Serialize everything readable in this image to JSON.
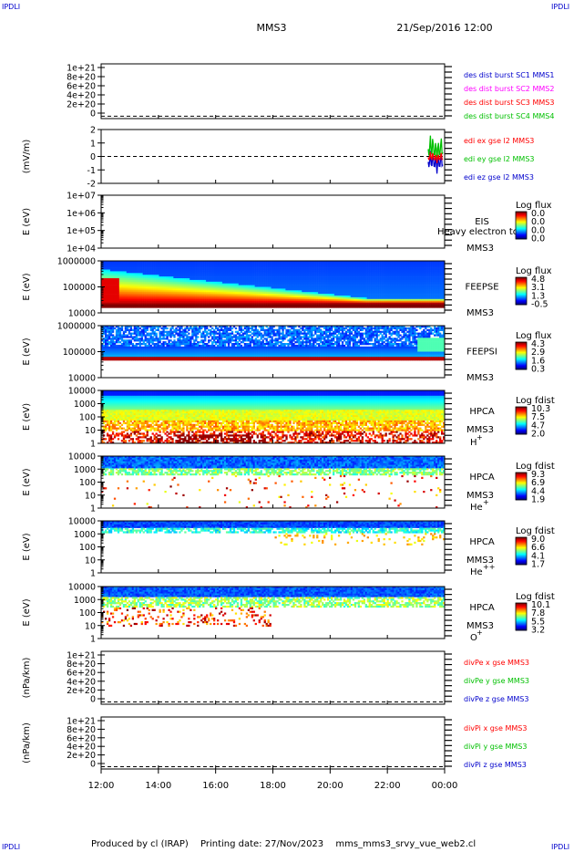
{
  "corners": {
    "tl": "IPDLI",
    "tr": "IPDLI",
    "bl": "IPDLI",
    "br": "IPDLI"
  },
  "header": {
    "spacecraft": "MMS3",
    "datetime": "21/Sep/2016 12:00"
  },
  "footer": {
    "produced": "Produced by cl (IRAP)",
    "printing": "Printing date: 27/Nov/2023",
    "file": "mms_mms3_srvy_vue_web2.cl"
  },
  "colors": {
    "red": "#ff0000",
    "green": "#00c000",
    "blue": "#0000cc",
    "magenta": "#ff00ff",
    "axis": "#000000"
  },
  "chart_data": [
    {
      "type": "line",
      "panel": 1,
      "ylabel": "",
      "ylim": [
        -5e+19,
        1.1e+21
      ],
      "yticks": [
        "0",
        "2e+20",
        "4e+20",
        "6e+20",
        "8e+20",
        "1e+21"
      ],
      "zero_line": true,
      "series": [
        {
          "name": "des dist burst SC1 MMS1",
          "color": "#0000cc"
        },
        {
          "name": "des dist burst SC2 MMS2",
          "color": "#ff00ff"
        },
        {
          "name": "des dist burst SC3 MMS3",
          "color": "#ff0000"
        },
        {
          "name": "des dist burst SC4 MMS4",
          "color": "#00c000"
        }
      ]
    },
    {
      "type": "line",
      "panel": 2,
      "ylabel": "(mV/m)",
      "ylim": [
        -2,
        2
      ],
      "yticks": [
        "-2",
        "-1",
        "0",
        "1",
        "2"
      ],
      "zero_line": true,
      "series": [
        {
          "name": "edi ex gse l2 MMS3",
          "color": "#ff0000"
        },
        {
          "name": "edi ey gse l2 MMS3",
          "color": "#00c000"
        },
        {
          "name": "edi ez gse l2 MMS3",
          "color": "#0000cc"
        }
      ]
    },
    {
      "type": "heatmap",
      "panel": 3,
      "log": true,
      "ylabel": "E (eV)",
      "ylim": [
        10000,
        10000000
      ],
      "yticks": [
        "1e+04",
        "1e+05",
        "1e+06",
        "1e+07"
      ],
      "instrument": "EIS",
      "subtitle": "Heavy electron to",
      "spacecraft": "MMS3",
      "colorbar": {
        "label": "Log flux",
        "ticks": [
          "0.0",
          "0.0",
          "0.0",
          "0.0"
        ]
      }
    },
    {
      "type": "heatmap",
      "panel": 4,
      "log": true,
      "ylabel": "E (eV)",
      "ylim": [
        10000,
        1000000
      ],
      "yticks": [
        "10000",
        "100000",
        "1000000"
      ],
      "instrument": "FEEPSE",
      "spacecraft": "MMS3",
      "colorbar": {
        "label": "Log flux",
        "ticks": [
          "4.8",
          "3.1",
          "1.3",
          "-0.5"
        ]
      }
    },
    {
      "type": "heatmap",
      "panel": 5,
      "log": true,
      "ylabel": "E (eV)",
      "ylim": [
        10000,
        1000000
      ],
      "yticks": [
        "10000",
        "100000",
        "1000000"
      ],
      "instrument": "FEEPSI",
      "spacecraft": "MMS3",
      "colorbar": {
        "label": "Log flux",
        "ticks": [
          "4.3",
          "2.9",
          "1.6",
          "0.3"
        ]
      }
    },
    {
      "type": "heatmap",
      "panel": 6,
      "log": true,
      "ylabel": "E (eV)",
      "ylim": [
        1,
        10000
      ],
      "yticks": [
        "1",
        "10",
        "100",
        "1000",
        "10000"
      ],
      "instrument": "HPCA",
      "spacecraft": "MMS3",
      "species": "H",
      "charge": "+",
      "colorbar": {
        "label": "Log fdist",
        "ticks": [
          "10.3",
          "7.5",
          "4.7",
          "2.0"
        ]
      }
    },
    {
      "type": "heatmap",
      "panel": 7,
      "log": true,
      "ylabel": "E (eV)",
      "ylim": [
        1,
        10000
      ],
      "yticks": [
        "1",
        "10",
        "100",
        "1000",
        "10000"
      ],
      "instrument": "HPCA",
      "spacecraft": "MMS3",
      "species": "He",
      "charge": "+",
      "colorbar": {
        "label": "Log fdist",
        "ticks": [
          "9.3",
          "6.9",
          "4.4",
          "1.9"
        ]
      }
    },
    {
      "type": "heatmap",
      "panel": 8,
      "log": true,
      "ylabel": "E (eV)",
      "ylim": [
        1,
        10000
      ],
      "yticks": [
        "1",
        "10",
        "100",
        "1000",
        "10000"
      ],
      "instrument": "HPCA",
      "spacecraft": "MMS3",
      "species": "He",
      "charge": "++",
      "colorbar": {
        "label": "Log fdist",
        "ticks": [
          "9.0",
          "6.6",
          "4.1",
          "1.7"
        ]
      }
    },
    {
      "type": "heatmap",
      "panel": 9,
      "log": true,
      "ylabel": "E (eV)",
      "ylim": [
        1,
        10000
      ],
      "yticks": [
        "1",
        "10",
        "100",
        "1000",
        "10000"
      ],
      "instrument": "HPCA",
      "spacecraft": "MMS3",
      "species": "O",
      "charge": "+",
      "colorbar": {
        "label": "Log fdist",
        "ticks": [
          "10.1",
          "7.8",
          "5.5",
          "3.2"
        ]
      }
    },
    {
      "type": "line",
      "panel": 10,
      "ylabel": "(nPa/km)",
      "ylim": [
        -5e+19,
        1.1e+21
      ],
      "yticks": [
        "0",
        "2e+20",
        "4e+20",
        "6e+20",
        "8e+20",
        "1e+21"
      ],
      "zero_line": true,
      "series": [
        {
          "name": "divPe x gse MMS3",
          "color": "#ff0000"
        },
        {
          "name": "divPe y gse MMS3",
          "color": "#00c000"
        },
        {
          "name": "divPe z gse MMS3",
          "color": "#0000cc"
        }
      ]
    },
    {
      "type": "line",
      "panel": 11,
      "ylabel": "(nPa/km)",
      "ylim": [
        -5e+19,
        1.1e+21
      ],
      "yticks": [
        "0",
        "2e+20",
        "4e+20",
        "6e+20",
        "8e+20",
        "1e+21"
      ],
      "zero_line": true,
      "series": [
        {
          "name": "divPi x gse MMS3",
          "color": "#ff0000"
        },
        {
          "name": "divPi y gse MMS3",
          "color": "#00c000"
        },
        {
          "name": "divPi z gse MMS3",
          "color": "#0000cc"
        }
      ]
    }
  ],
  "time_axis": {
    "ticks": [
      "12:00",
      "14:00",
      "16:00",
      "18:00",
      "20:00",
      "22:00",
      "00:00"
    ]
  }
}
